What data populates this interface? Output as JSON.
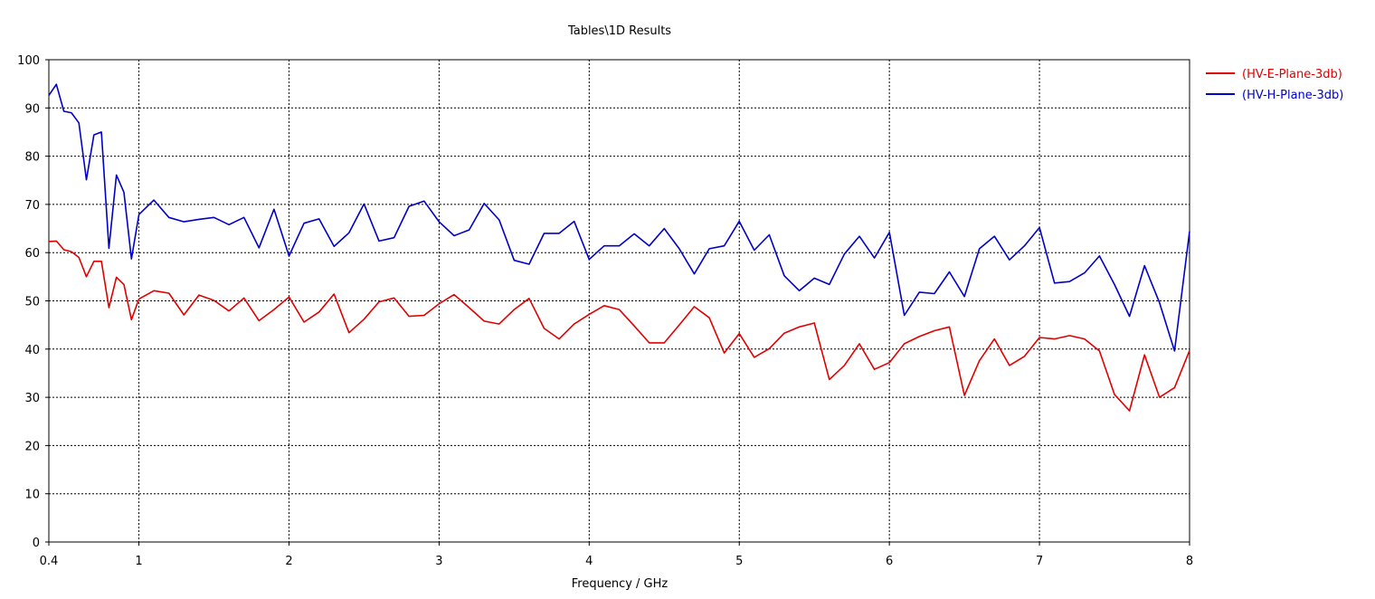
{
  "chart_data": {
    "type": "line",
    "title": "Tables\\1D Results",
    "xlabel": "Frequency / GHz",
    "ylabel": "",
    "xlim": [
      0.4,
      8
    ],
    "ylim": [
      0,
      100
    ],
    "grid": true,
    "legend_position": "top-right",
    "x_ticks": [
      0.4,
      1,
      2,
      3,
      4,
      5,
      6,
      7,
      8
    ],
    "x_tick_labels": [
      "0.4",
      "1",
      "2",
      "3",
      "4",
      "5",
      "6",
      "7",
      "8"
    ],
    "y_ticks": [
      0,
      10,
      20,
      30,
      40,
      50,
      60,
      70,
      80,
      90,
      100
    ],
    "y_tick_labels": [
      "0",
      "10",
      "20",
      "30",
      "40",
      "50",
      "60",
      "70",
      "80",
      "90",
      "100"
    ],
    "series": [
      {
        "name": "(HV-E-Plane-3db)",
        "color": "#e00000",
        "points": [
          [
            0.4,
            62.3
          ],
          [
            0.45,
            62.4
          ],
          [
            0.5,
            60.6
          ],
          [
            0.55,
            60.2
          ],
          [
            0.6,
            59.0
          ],
          [
            0.65,
            55.0
          ],
          [
            0.7,
            58.2
          ],
          [
            0.75,
            58.2
          ],
          [
            0.8,
            48.6
          ],
          [
            0.85,
            54.9
          ],
          [
            0.9,
            53.4
          ],
          [
            0.95,
            46.1
          ],
          [
            1.0,
            50.4
          ],
          [
            1.1,
            52.1
          ],
          [
            1.2,
            51.6
          ],
          [
            1.3,
            47.1
          ],
          [
            1.4,
            51.2
          ],
          [
            1.5,
            50.1
          ],
          [
            1.6,
            47.9
          ],
          [
            1.7,
            50.6
          ],
          [
            1.8,
            45.9
          ],
          [
            1.9,
            48.2
          ],
          [
            2.0,
            50.8
          ],
          [
            2.1,
            45.6
          ],
          [
            2.2,
            47.7
          ],
          [
            2.3,
            51.4
          ],
          [
            2.4,
            43.4
          ],
          [
            2.5,
            46.2
          ],
          [
            2.6,
            49.8
          ],
          [
            2.7,
            50.6
          ],
          [
            2.8,
            46.8
          ],
          [
            2.9,
            47.0
          ],
          [
            3.0,
            49.4
          ],
          [
            3.1,
            51.3
          ],
          [
            3.2,
            48.6
          ],
          [
            3.3,
            45.8
          ],
          [
            3.4,
            45.2
          ],
          [
            3.5,
            48.2
          ],
          [
            3.6,
            50.5
          ],
          [
            3.7,
            44.3
          ],
          [
            3.8,
            42.1
          ],
          [
            3.9,
            45.2
          ],
          [
            4.0,
            47.2
          ],
          [
            4.1,
            49.0
          ],
          [
            4.2,
            48.2
          ],
          [
            4.3,
            44.8
          ],
          [
            4.4,
            41.3
          ],
          [
            4.5,
            41.3
          ],
          [
            4.6,
            45.0
          ],
          [
            4.7,
            48.8
          ],
          [
            4.8,
            46.5
          ],
          [
            4.9,
            39.2
          ],
          [
            5.0,
            43.2
          ],
          [
            5.1,
            38.3
          ],
          [
            5.2,
            40.1
          ],
          [
            5.3,
            43.3
          ],
          [
            5.4,
            44.6
          ],
          [
            5.5,
            45.4
          ],
          [
            5.6,
            33.7
          ],
          [
            5.7,
            36.6
          ],
          [
            5.8,
            41.1
          ],
          [
            5.9,
            35.8
          ],
          [
            6.0,
            37.2
          ],
          [
            6.1,
            41.1
          ],
          [
            6.2,
            42.6
          ],
          [
            6.3,
            43.8
          ],
          [
            6.4,
            44.6
          ],
          [
            6.5,
            30.4
          ],
          [
            6.6,
            37.6
          ],
          [
            6.7,
            42.1
          ],
          [
            6.8,
            36.6
          ],
          [
            6.9,
            38.5
          ],
          [
            7.0,
            42.4
          ],
          [
            7.1,
            42.1
          ],
          [
            7.2,
            42.8
          ],
          [
            7.3,
            42.1
          ],
          [
            7.4,
            39.6
          ],
          [
            7.5,
            30.6
          ],
          [
            7.6,
            27.2
          ],
          [
            7.7,
            38.8
          ],
          [
            7.8,
            30.0
          ],
          [
            7.9,
            32.0
          ],
          [
            8.0,
            39.7
          ]
        ]
      },
      {
        "name": "(HV-H-Plane-3db)",
        "color": "#0000c8",
        "points": [
          [
            0.4,
            92.6
          ],
          [
            0.45,
            94.9
          ],
          [
            0.5,
            89.3
          ],
          [
            0.55,
            89.0
          ],
          [
            0.6,
            86.9
          ],
          [
            0.65,
            75.1
          ],
          [
            0.7,
            84.4
          ],
          [
            0.75,
            85.0
          ],
          [
            0.8,
            60.9
          ],
          [
            0.85,
            76.1
          ],
          [
            0.9,
            72.5
          ],
          [
            0.95,
            58.7
          ],
          [
            1.0,
            67.9
          ],
          [
            1.1,
            70.9
          ],
          [
            1.2,
            67.3
          ],
          [
            1.3,
            66.4
          ],
          [
            1.4,
            66.9
          ],
          [
            1.5,
            67.3
          ],
          [
            1.6,
            65.8
          ],
          [
            1.7,
            67.3
          ],
          [
            1.8,
            61.0
          ],
          [
            1.9,
            69.0
          ],
          [
            2.0,
            59.3
          ],
          [
            2.1,
            66.1
          ],
          [
            2.2,
            67.0
          ],
          [
            2.3,
            61.3
          ],
          [
            2.4,
            64.1
          ],
          [
            2.5,
            70.1
          ],
          [
            2.6,
            62.4
          ],
          [
            2.7,
            63.1
          ],
          [
            2.8,
            69.6
          ],
          [
            2.9,
            70.7
          ],
          [
            3.0,
            66.4
          ],
          [
            3.1,
            63.5
          ],
          [
            3.2,
            64.7
          ],
          [
            3.3,
            70.2
          ],
          [
            3.4,
            66.8
          ],
          [
            3.5,
            58.4
          ],
          [
            3.6,
            57.6
          ],
          [
            3.7,
            64.0
          ],
          [
            3.8,
            64.0
          ],
          [
            3.9,
            66.5
          ],
          [
            4.0,
            58.6
          ],
          [
            4.1,
            61.4
          ],
          [
            4.2,
            61.4
          ],
          [
            4.3,
            63.9
          ],
          [
            4.4,
            61.4
          ],
          [
            4.5,
            65.0
          ],
          [
            4.6,
            60.8
          ],
          [
            4.7,
            55.6
          ],
          [
            4.8,
            60.8
          ],
          [
            4.9,
            61.4
          ],
          [
            5.0,
            66.5
          ],
          [
            5.1,
            60.5
          ],
          [
            5.2,
            63.7
          ],
          [
            5.3,
            55.2
          ],
          [
            5.4,
            52.1
          ],
          [
            5.5,
            54.7
          ],
          [
            5.6,
            53.4
          ],
          [
            5.7,
            59.7
          ],
          [
            5.8,
            63.4
          ],
          [
            5.9,
            58.9
          ],
          [
            6.0,
            64.2
          ],
          [
            6.1,
            47.0
          ],
          [
            6.2,
            51.8
          ],
          [
            6.3,
            51.5
          ],
          [
            6.4,
            56.0
          ],
          [
            6.5,
            50.9
          ],
          [
            6.6,
            60.8
          ],
          [
            6.7,
            63.4
          ],
          [
            6.8,
            58.5
          ],
          [
            6.9,
            61.4
          ],
          [
            7.0,
            65.2
          ],
          [
            7.1,
            53.7
          ],
          [
            7.2,
            54.0
          ],
          [
            7.3,
            55.8
          ],
          [
            7.4,
            59.3
          ],
          [
            7.5,
            53.4
          ],
          [
            7.6,
            46.8
          ],
          [
            7.7,
            57.3
          ],
          [
            7.8,
            49.6
          ],
          [
            7.9,
            39.6
          ],
          [
            8.0,
            64.4
          ]
        ]
      }
    ]
  }
}
